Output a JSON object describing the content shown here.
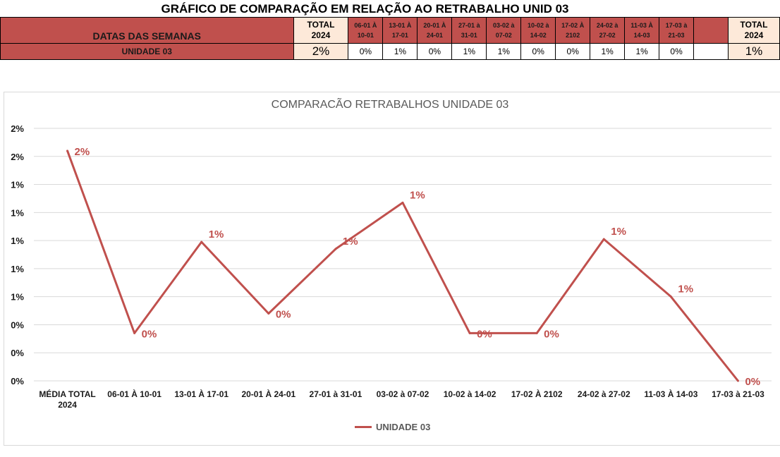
{
  "sheet": {
    "title": "GRÁFICO DE COMPARAÇÃO EM RELAÇÃO AO RETRABALHO UNID 03",
    "header_label": "DATAS DAS SEMANAS",
    "total_label_lines": [
      "TOTAL",
      "2024"
    ],
    "weeks": [
      [
        "06-01 À",
        "10-01"
      ],
      [
        "13-01 À",
        "17-01"
      ],
      [
        "20-01 À",
        "24-01"
      ],
      [
        "27-01 à",
        "31-01"
      ],
      [
        "03-02 à",
        "07-02"
      ],
      [
        "10-02 à",
        "14-02"
      ],
      [
        "17-02 À",
        "2102"
      ],
      [
        "24-02 à",
        "27-02"
      ],
      [
        "11-03 À",
        "14-03"
      ],
      [
        "17-03 à",
        "21-03"
      ]
    ],
    "row_label": "UNIDADE 03",
    "row_total_first": "2%",
    "row_values": [
      "0%",
      "1%",
      "0%",
      "1%",
      "1%",
      "0%",
      "0%",
      "1%",
      "1%",
      "0%"
    ],
    "row_total_last": "1%"
  },
  "chart_data": {
    "type": "line",
    "title": "COMPARACÃO RETRABALHOS UNIDADE 03",
    "categories": [
      "MÉDIA TOTAL 2024",
      "06-01 À 10-01",
      "13-01 À 17-01",
      "20-01 À 24-01",
      "27-01 à 31-01",
      "03-02 à 07-02",
      "10-02 à 14-02",
      "17-02 À 2102",
      "24-02 à 27-02",
      "11-03 À 14-03",
      "17-03 à 21-03"
    ],
    "series": [
      {
        "name": "UNIDADE 03",
        "color": "#c0504d",
        "values": [
          0.0164,
          0.0034,
          0.0099,
          0.0048,
          0.0094,
          0.0127,
          0.0034,
          0.0034,
          0.0101,
          0.006,
          0.0
        ],
        "labels": [
          "2%",
          "0%",
          "1%",
          "0%",
          "1%",
          "1%",
          "0%",
          "0%",
          "1%",
          "1%",
          "0%"
        ]
      }
    ],
    "ylim": [
      0,
      0.018
    ],
    "yticks": [
      0,
      0.002,
      0.004,
      0.006,
      0.008,
      0.01,
      0.012,
      0.014,
      0.016,
      0.018
    ],
    "ytick_labels": [
      "0%",
      "0%",
      "0%",
      "1%",
      "1%",
      "1%",
      "1%",
      "1%",
      "2%",
      "2%"
    ],
    "grid": true,
    "legend": "bottom"
  }
}
